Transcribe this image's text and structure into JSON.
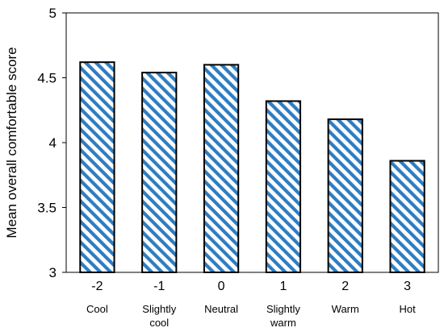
{
  "chart_data": {
    "type": "bar",
    "categories": [
      "-2",
      "-1",
      "0",
      "1",
      "2",
      "3"
    ],
    "category_descriptions": [
      [
        "Cool"
      ],
      [
        "Slightly",
        "cool"
      ],
      [
        "Neutral"
      ],
      [
        "Slightly",
        "warm"
      ],
      [
        "Warm"
      ],
      [
        "Hot"
      ]
    ],
    "values": [
      4.62,
      4.54,
      4.6,
      4.32,
      4.18,
      3.86
    ],
    "title": "",
    "xlabel": "",
    "ylabel": "Mean overall comfortable score",
    "ylim": [
      3,
      5
    ],
    "yticks": [
      3,
      3.5,
      4,
      4.5,
      5
    ],
    "ytick_labels": [
      "3",
      "3.5",
      "4",
      "4.5",
      "5"
    ],
    "grid": false,
    "legend": "none",
    "bar_fill": "diagonal-hatch",
    "hatch_color": "#2e7dc2",
    "bar_edge_color": "#000000"
  }
}
